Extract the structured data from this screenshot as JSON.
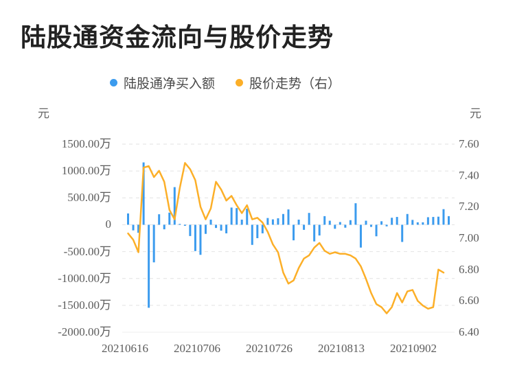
{
  "title": "陆股通资金流向与股价走势",
  "legend": {
    "items": [
      {
        "label": "陆股通净买入额",
        "color": "#3B9BEE"
      },
      {
        "label": "股价走势（右）",
        "color": "#FCAF28"
      }
    ]
  },
  "axes": {
    "left": {
      "unit": "元",
      "ticks": [
        "1500.00万",
        "1000.00万",
        "500.00万",
        "0",
        "-500.00万",
        "-1000.00万",
        "-1500.00万",
        "-2000.00万"
      ]
    },
    "right": {
      "unit": "元",
      "ticks": [
        "7.60",
        "7.40",
        "7.20",
        "7.00",
        "6.80",
        "6.60",
        "6.40"
      ]
    },
    "x": {
      "ticks": [
        "20210616",
        "20210706",
        "20210726",
        "20210813",
        "20210902"
      ]
    }
  },
  "chart_data": {
    "type": "bar+line",
    "title": "陆股通资金流向与股价走势",
    "x_count": 63,
    "x_tick_labels": [
      "20210616",
      "20210706",
      "20210726",
      "20210813",
      "20210902"
    ],
    "x_tick_indices": [
      0,
      14,
      28,
      42,
      56
    ],
    "grid": "dashed-horizontal",
    "legend_position": "top-center",
    "left_axis": {
      "unit": "元",
      "scale_unit": "万",
      "ylim": [
        -2000,
        1500
      ],
      "tick_step": 500
    },
    "right_axis": {
      "unit": "元",
      "ylim": [
        6.4,
        7.6
      ],
      "tick_step": 0.2
    },
    "series": [
      {
        "name": "陆股通净买入额",
        "type": "bar",
        "axis": "left",
        "unit": "万元",
        "color": "#3B9BEE",
        "values": [
          210,
          -105,
          -150,
          1160,
          -1545,
          -700,
          195,
          -85,
          225,
          700,
          15,
          -20,
          -210,
          -490,
          -560,
          -170,
          95,
          -60,
          -110,
          -160,
          320,
          310,
          95,
          300,
          -375,
          -250,
          -160,
          125,
          100,
          120,
          200,
          285,
          -290,
          95,
          -95,
          220,
          -310,
          -200,
          160,
          75,
          -75,
          50,
          -55,
          85,
          400,
          -425,
          75,
          -40,
          -215,
          65,
          -30,
          130,
          145,
          -320,
          200,
          90,
          45,
          45,
          140,
          145,
          150,
          290,
          160
        ]
      },
      {
        "name": "股价走势",
        "type": "line",
        "axis": "right",
        "unit": "元",
        "color": "#FCAF28",
        "values": [
          7.03,
          6.99,
          6.91,
          7.45,
          7.46,
          7.39,
          7.43,
          7.36,
          7.18,
          7.12,
          7.32,
          7.48,
          7.44,
          7.37,
          7.2,
          7.12,
          7.19,
          7.36,
          7.31,
          7.24,
          7.27,
          7.21,
          7.16,
          7.21,
          7.12,
          7.13,
          7.1,
          7.04,
          6.96,
          6.91,
          6.78,
          6.71,
          6.73,
          6.81,
          6.87,
          6.89,
          6.94,
          6.97,
          6.92,
          6.9,
          6.91,
          6.9,
          6.9,
          6.89,
          6.87,
          6.82,
          6.74,
          6.65,
          6.58,
          6.56,
          6.52,
          6.56,
          6.65,
          6.59,
          6.66,
          6.67,
          6.6,
          6.57,
          6.55,
          6.56,
          6.8,
          6.78,
          null
        ]
      }
    ]
  }
}
